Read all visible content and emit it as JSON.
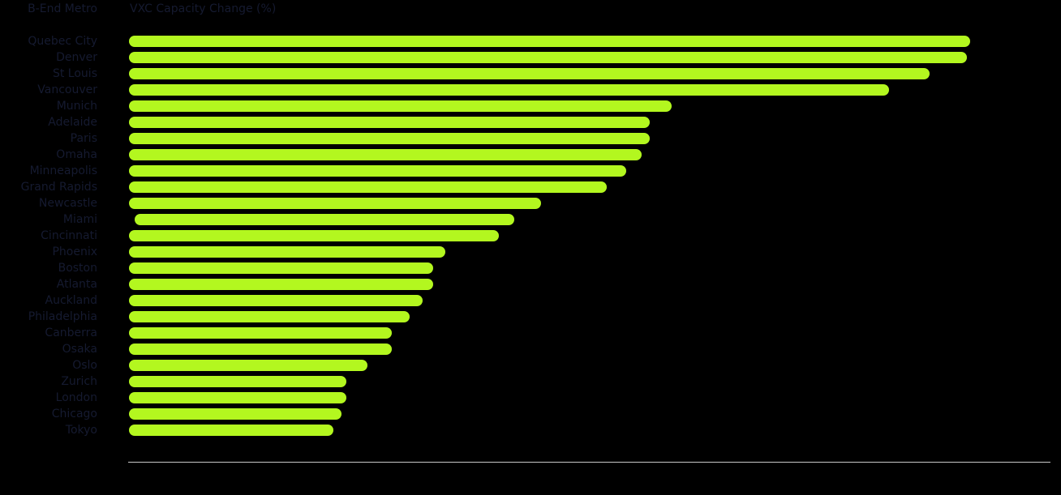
{
  "header": {
    "category_label": "B-End Metro",
    "value_label": "VXC Capacity Change (%)"
  },
  "colors": {
    "background": "#000000",
    "bar": "#b3f71f",
    "text": "#151a30",
    "axis": "#c8c8c8"
  },
  "chart_data": {
    "type": "bar",
    "orientation": "horizontal",
    "title": "VXC Capacity Change (%)",
    "xlabel": "VXC Capacity Change (%)",
    "ylabel": "B-End Metro",
    "grid": false,
    "legend": null,
    "note": "No tick labels shown; values are relative bar lengths in px measured from the bar baseline (axis width ≈1136px).",
    "categories": [
      "Quebec City",
      "Denver",
      "St Louis",
      "Vancouver",
      "Munich",
      "Adelaide",
      "Paris",
      "Omaha",
      "Minneapolis",
      "Grand Rapids",
      "Newcastle",
      "Miami",
      "Cincinnati",
      "Phoenix",
      "Boston",
      "Atlanta",
      "Auckland",
      "Philadelphia",
      "Canberra",
      "Osaka",
      "Oslo",
      "Zurich",
      "London",
      "Chicago",
      "Tokyo"
    ],
    "values": [
      1037,
      1033,
      987,
      937,
      669,
      642,
      642,
      632,
      613,
      589,
      508,
      475,
      456,
      390,
      375,
      375,
      362,
      346,
      324,
      324,
      294,
      268,
      268,
      262,
      252
    ],
    "offsets": [
      0,
      0,
      0,
      0,
      0,
      0,
      0,
      0,
      0,
      0,
      0,
      7,
      0,
      0,
      0,
      0,
      0,
      0,
      0,
      0,
      0,
      0,
      0,
      0,
      0
    ]
  }
}
